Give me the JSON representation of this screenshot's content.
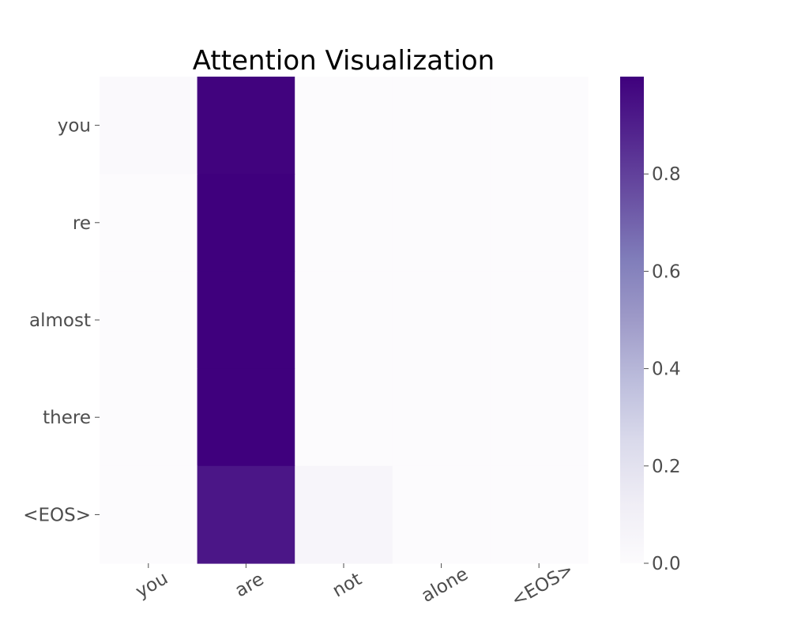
{
  "chart_data": {
    "type": "heatmap",
    "title": "Attention Visualization",
    "x_labels": [
      "you",
      "are",
      "not",
      "alone",
      "<EOS>"
    ],
    "y_labels": [
      "you",
      "re",
      "almost",
      "there",
      "<EOS>"
    ],
    "values": [
      [
        0.02,
        0.99,
        0.0,
        0.0,
        0.0
      ],
      [
        0.0,
        1.0,
        0.0,
        0.0,
        0.0
      ],
      [
        0.0,
        1.0,
        0.0,
        0.0,
        0.0
      ],
      [
        0.0,
        1.0,
        0.0,
        0.0,
        0.0
      ],
      [
        0.0,
        0.93,
        0.05,
        0.0,
        0.0
      ]
    ],
    "colormap": "Purples",
    "colorbar": {
      "ticks": [
        0.0,
        0.2,
        0.4,
        0.6,
        0.8
      ],
      "tick_labels": [
        "0.0",
        "0.2",
        "0.4",
        "0.6",
        "0.8"
      ],
      "range": [
        0,
        1.0
      ]
    },
    "xtick_rotation": -30,
    "grid": false,
    "colors": {
      "low": "#fcfbfd",
      "high": "#3f007d",
      "tick_text": "#4d4d4d",
      "title_text": "#000000"
    }
  }
}
